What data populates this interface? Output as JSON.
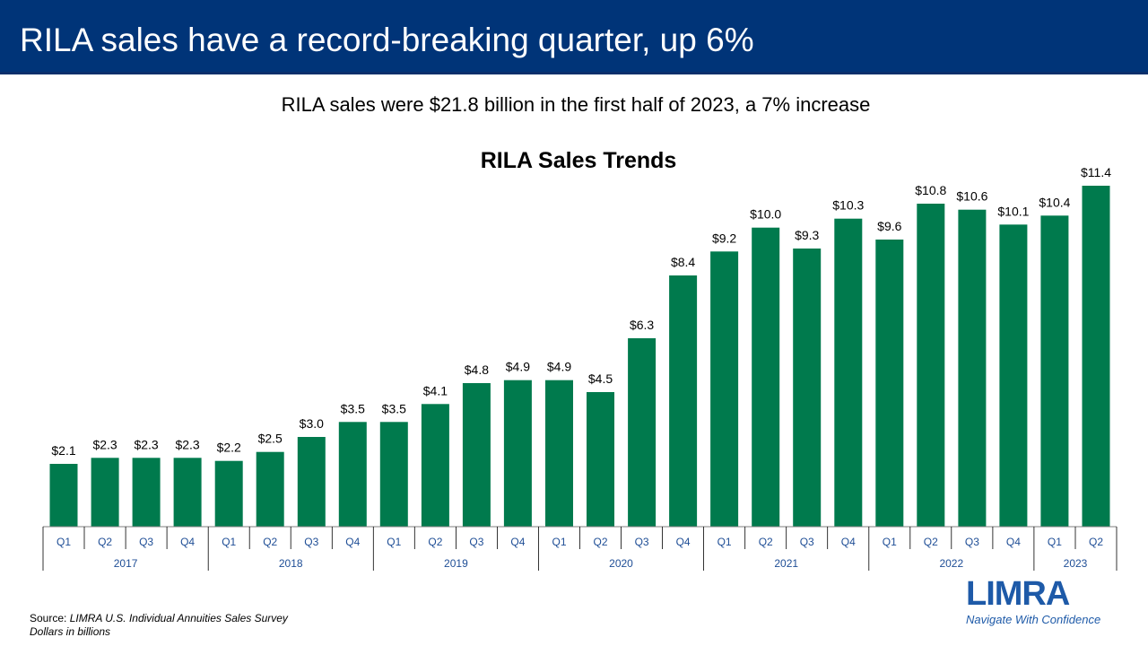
{
  "header": {
    "title": "RILA sales have a record-breaking quarter, up 6%"
  },
  "subtitle": "RILA sales were $21.8 billion in the first half of 2023, a 7% increase",
  "colors": {
    "header_bg": "#003478",
    "bar": "#007A4D",
    "axis_text": "#1f4e96",
    "logo_blue": "#1e5aa8"
  },
  "chart_data": {
    "type": "bar",
    "title": "RILA Sales Trends",
    "xlabel": "",
    "ylabel": "",
    "ylim": [
      0,
      11.4
    ],
    "grid": false,
    "categories": [
      "Q1",
      "Q2",
      "Q3",
      "Q4",
      "Q1",
      "Q2",
      "Q3",
      "Q4",
      "Q1",
      "Q2",
      "Q3",
      "Q4",
      "Q1",
      "Q2",
      "Q3",
      "Q4",
      "Q1",
      "Q2",
      "Q3",
      "Q4",
      "Q1",
      "Q2",
      "Q3",
      "Q4",
      "Q1",
      "Q2"
    ],
    "groups": [
      {
        "label": "2017",
        "count": 4
      },
      {
        "label": "2018",
        "count": 4
      },
      {
        "label": "2019",
        "count": 4
      },
      {
        "label": "2020",
        "count": 4
      },
      {
        "label": "2021",
        "count": 4
      },
      {
        "label": "2022",
        "count": 4
      },
      {
        "label": "2023",
        "count": 2
      }
    ],
    "values": [
      2.1,
      2.3,
      2.3,
      2.3,
      2.2,
      2.5,
      3.0,
      3.5,
      3.5,
      4.1,
      4.8,
      4.9,
      4.9,
      4.5,
      6.3,
      8.4,
      9.2,
      10.0,
      9.3,
      10.3,
      9.6,
      10.8,
      10.6,
      10.1,
      10.4,
      11.4
    ],
    "data_labels": [
      "$2.1",
      "$2.3",
      "$2.3",
      "$2.3",
      "$2.2",
      "$2.5",
      "$3.0",
      "$3.5",
      "$3.5",
      "$4.1",
      "$4.8",
      "$4.9",
      "$4.9",
      "$4.5",
      "$6.3",
      "$8.4",
      "$9.2",
      "$10.0",
      "$9.3",
      "$10.3",
      "$9.6",
      "$10.8",
      "$10.6",
      "$10.1",
      "$10.4",
      "$11.4"
    ]
  },
  "footer": {
    "source_prefix": "Source: ",
    "source_name": "LIMRA  U.S. Individual Annuities Sales Survey",
    "units": "Dollars in billions"
  },
  "logo": {
    "wordmark": "LIMRA",
    "tagline": "Navigate With Confidence"
  }
}
